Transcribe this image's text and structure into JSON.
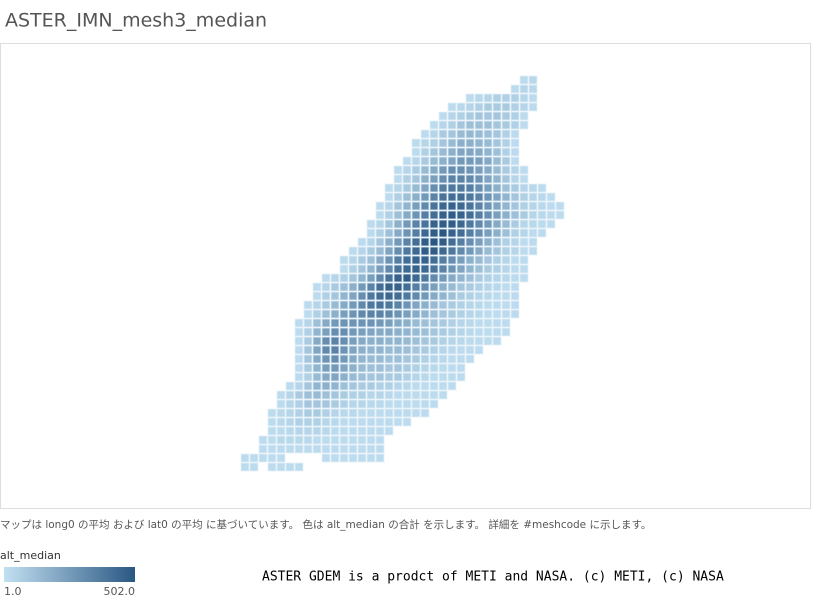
{
  "title": "ASTER_IMN_mesh3_median",
  "caption": "マップは long0 の平均 および lat0 の平均 に基づいています。 色は alt_median の合計 を示します。 詳細を #meshcode に示します。",
  "credit": "ASTER GDEM is a prodct of METI and NASA. (c) METI, (c) NASA",
  "legend": {
    "title": "alt_median",
    "min": {
      "value": 1,
      "label": "1.0"
    },
    "max": {
      "value": 502,
      "label": "502.0"
    },
    "min_color": "#c2e0f2",
    "max_color": "#2a5783"
  },
  "mesh": {
    "rows": [
      [
        null,
        null,
        null,
        null,
        null,
        null,
        null,
        null,
        null,
        null,
        null,
        null,
        null,
        null,
        null,
        null,
        null,
        null,
        null,
        null,
        null,
        null,
        null,
        null,
        null,
        null,
        null,
        null,
        null,
        null,
        null,
        20,
        30
      ],
      [
        null,
        null,
        null,
        null,
        null,
        null,
        null,
        null,
        null,
        null,
        null,
        null,
        null,
        null,
        null,
        null,
        null,
        null,
        null,
        null,
        null,
        null,
        null,
        null,
        null,
        null,
        null,
        null,
        null,
        null,
        20,
        40,
        30
      ],
      [
        null,
        null,
        null,
        null,
        null,
        null,
        null,
        null,
        null,
        null,
        null,
        null,
        null,
        null,
        null,
        null,
        null,
        null,
        null,
        null,
        null,
        null,
        null,
        null,
        null,
        20,
        30,
        40,
        60,
        60,
        60,
        40,
        20
      ],
      [
        null,
        null,
        null,
        null,
        null,
        null,
        null,
        null,
        null,
        null,
        null,
        null,
        null,
        null,
        null,
        null,
        null,
        null,
        null,
        null,
        null,
        null,
        null,
        20,
        30,
        40,
        60,
        80,
        80,
        80,
        60,
        40,
        20
      ],
      [
        null,
        null,
        null,
        null,
        null,
        null,
        null,
        null,
        null,
        null,
        null,
        null,
        null,
        null,
        null,
        null,
        null,
        null,
        null,
        null,
        null,
        null,
        20,
        40,
        60,
        80,
        100,
        100,
        100,
        80,
        60,
        20
      ],
      [
        null,
        null,
        null,
        null,
        null,
        null,
        null,
        null,
        null,
        null,
        null,
        null,
        null,
        null,
        null,
        null,
        null,
        null,
        null,
        null,
        null,
        20,
        40,
        60,
        100,
        120,
        120,
        120,
        100,
        80,
        60,
        20
      ],
      [
        null,
        null,
        null,
        null,
        null,
        null,
        null,
        null,
        null,
        null,
        null,
        null,
        null,
        null,
        null,
        null,
        null,
        null,
        null,
        null,
        20,
        40,
        80,
        100,
        140,
        150,
        140,
        120,
        100,
        60,
        20
      ],
      [
        null,
        null,
        null,
        null,
        null,
        null,
        null,
        null,
        null,
        null,
        null,
        null,
        null,
        null,
        null,
        null,
        null,
        null,
        null,
        20,
        40,
        60,
        100,
        140,
        180,
        180,
        160,
        140,
        100,
        60,
        20
      ],
      [
        null,
        null,
        null,
        null,
        null,
        null,
        null,
        null,
        null,
        null,
        null,
        null,
        null,
        null,
        null,
        null,
        null,
        null,
        null,
        20,
        60,
        100,
        140,
        180,
        220,
        220,
        200,
        160,
        120,
        60,
        20
      ],
      [
        null,
        null,
        null,
        null,
        null,
        null,
        null,
        null,
        null,
        null,
        null,
        null,
        null,
        null,
        null,
        null,
        null,
        null,
        20,
        40,
        80,
        140,
        180,
        220,
        260,
        260,
        240,
        200,
        140,
        80,
        20
      ],
      [
        null,
        null,
        null,
        null,
        null,
        null,
        null,
        null,
        null,
        null,
        null,
        null,
        null,
        null,
        null,
        null,
        null,
        20,
        40,
        80,
        140,
        200,
        260,
        300,
        300,
        280,
        240,
        200,
        140,
        80,
        40,
        20
      ],
      [
        null,
        null,
        null,
        null,
        null,
        null,
        null,
        null,
        null,
        null,
        null,
        null,
        null,
        null,
        null,
        null,
        null,
        20,
        60,
        100,
        180,
        240,
        300,
        340,
        340,
        320,
        280,
        220,
        160,
        100,
        40,
        20
      ],
      [
        null,
        null,
        null,
        null,
        null,
        null,
        null,
        null,
        null,
        null,
        null,
        null,
        null,
        null,
        null,
        null,
        20,
        40,
        80,
        140,
        220,
        300,
        360,
        380,
        380,
        360,
        300,
        240,
        180,
        120,
        80,
        40,
        30,
        20
      ],
      [
        null,
        null,
        null,
        null,
        null,
        null,
        null,
        null,
        null,
        null,
        null,
        null,
        null,
        null,
        null,
        null,
        20,
        60,
        120,
        180,
        260,
        340,
        400,
        420,
        420,
        380,
        340,
        280,
        220,
        160,
        100,
        60,
        40,
        30,
        20
      ],
      [
        null,
        null,
        null,
        null,
        null,
        null,
        null,
        null,
        null,
        null,
        null,
        null,
        null,
        null,
        null,
        20,
        40,
        100,
        160,
        240,
        320,
        400,
        440,
        460,
        440,
        400,
        340,
        280,
        220,
        160,
        100,
        60,
        40,
        30,
        20,
        20
      ],
      [
        null,
        null,
        null,
        null,
        null,
        null,
        null,
        null,
        null,
        null,
        null,
        null,
        null,
        null,
        null,
        20,
        60,
        120,
        200,
        280,
        360,
        420,
        460,
        480,
        460,
        420,
        360,
        300,
        240,
        180,
        120,
        80,
        40,
        30,
        20,
        20
      ],
      [
        null,
        null,
        null,
        null,
        null,
        null,
        null,
        null,
        null,
        null,
        null,
        null,
        null,
        null,
        20,
        40,
        100,
        180,
        260,
        340,
        400,
        460,
        480,
        480,
        440,
        380,
        320,
        260,
        200,
        140,
        80,
        40,
        30,
        20,
        20
      ],
      [
        null,
        null,
        null,
        null,
        null,
        null,
        null,
        null,
        null,
        null,
        null,
        null,
        null,
        null,
        20,
        60,
        120,
        200,
        280,
        360,
        440,
        480,
        500,
        460,
        420,
        360,
        300,
        240,
        180,
        120,
        60,
        40,
        20,
        20
      ],
      [
        null,
        null,
        null,
        null,
        null,
        null,
        null,
        null,
        null,
        null,
        null,
        null,
        null,
        20,
        40,
        100,
        180,
        260,
        340,
        420,
        480,
        502,
        480,
        420,
        360,
        300,
        240,
        180,
        120,
        60,
        40,
        20,
        20
      ],
      [
        null,
        null,
        null,
        null,
        null,
        null,
        null,
        null,
        null,
        null,
        null,
        null,
        20,
        40,
        80,
        140,
        220,
        300,
        380,
        440,
        480,
        480,
        440,
        380,
        320,
        260,
        200,
        140,
        100,
        60,
        40,
        20,
        20
      ],
      [
        null,
        null,
        null,
        null,
        null,
        null,
        null,
        null,
        null,
        null,
        null,
        20,
        40,
        80,
        120,
        200,
        280,
        360,
        420,
        460,
        460,
        420,
        360,
        300,
        240,
        180,
        140,
        100,
        60,
        40,
        20,
        20
      ],
      [
        null,
        null,
        null,
        null,
        null,
        null,
        null,
        null,
        null,
        null,
        null,
        20,
        60,
        100,
        160,
        240,
        320,
        400,
        440,
        460,
        440,
        400,
        340,
        280,
        220,
        160,
        120,
        80,
        60,
        40,
        20,
        20
      ],
      [
        null,
        null,
        null,
        null,
        null,
        null,
        null,
        null,
        null,
        20,
        40,
        60,
        100,
        160,
        240,
        320,
        400,
        460,
        480,
        440,
        380,
        320,
        260,
        200,
        160,
        120,
        80,
        60,
        40,
        30,
        20,
        20
      ],
      [
        null,
        null,
        null,
        null,
        null,
        null,
        null,
        null,
        20,
        40,
        80,
        120,
        180,
        260,
        340,
        420,
        460,
        460,
        420,
        360,
        300,
        240,
        180,
        140,
        100,
        80,
        60,
        40,
        30,
        20,
        20
      ],
      [
        null,
        null,
        null,
        null,
        null,
        null,
        null,
        null,
        20,
        60,
        100,
        160,
        220,
        300,
        380,
        420,
        440,
        420,
        380,
        320,
        260,
        200,
        160,
        120,
        80,
        60,
        40,
        30,
        20,
        20,
        20
      ],
      [
        null,
        null,
        null,
        null,
        null,
        null,
        null,
        20,
        40,
        80,
        140,
        200,
        260,
        320,
        380,
        400,
        380,
        340,
        280,
        220,
        180,
        140,
        100,
        80,
        60,
        40,
        30,
        20,
        20,
        20,
        20
      ],
      [
        null,
        null,
        null,
        null,
        null,
        null,
        null,
        20,
        60,
        120,
        180,
        240,
        280,
        320,
        340,
        340,
        320,
        280,
        240,
        200,
        160,
        120,
        100,
        80,
        60,
        40,
        30,
        20,
        20,
        20,
        20
      ],
      [
        null,
        null,
        null,
        null,
        null,
        null,
        20,
        40,
        120,
        200,
        260,
        280,
        280,
        280,
        280,
        260,
        240,
        200,
        180,
        140,
        120,
        100,
        80,
        60,
        40,
        30,
        20,
        20,
        20,
        20
      ],
      [
        null,
        null,
        null,
        null,
        null,
        null,
        20,
        60,
        160,
        240,
        300,
        300,
        260,
        240,
        220,
        200,
        200,
        180,
        160,
        140,
        120,
        100,
        80,
        60,
        40,
        30,
        20,
        20,
        20,
        20
      ],
      [
        null,
        null,
        null,
        null,
        null,
        null,
        20,
        80,
        200,
        300,
        340,
        300,
        240,
        200,
        180,
        180,
        160,
        160,
        140,
        120,
        100,
        80,
        60,
        40,
        30,
        20,
        20,
        20,
        20
      ],
      [
        null,
        null,
        null,
        null,
        null,
        null,
        20,
        100,
        220,
        320,
        340,
        280,
        220,
        180,
        160,
        160,
        140,
        140,
        120,
        100,
        80,
        60,
        40,
        30,
        20,
        20,
        20
      ],
      [
        null,
        null,
        null,
        null,
        null,
        null,
        20,
        100,
        200,
        280,
        300,
        260,
        200,
        160,
        140,
        140,
        120,
        120,
        100,
        80,
        60,
        40,
        30,
        20,
        20,
        20
      ],
      [
        null,
        null,
        null,
        null,
        null,
        null,
        20,
        80,
        160,
        240,
        260,
        220,
        180,
        140,
        120,
        120,
        100,
        100,
        80,
        60,
        40,
        30,
        20,
        20,
        20
      ],
      [
        null,
        null,
        null,
        null,
        null,
        null,
        20,
        60,
        140,
        200,
        220,
        180,
        140,
        120,
        100,
        100,
        80,
        80,
        60,
        40,
        30,
        20,
        20,
        20,
        20
      ],
      [
        null,
        null,
        null,
        null,
        null,
        20,
        40,
        100,
        160,
        180,
        160,
        120,
        100,
        80,
        80,
        60,
        60,
        40,
        30,
        20,
        20,
        20,
        20,
        20
      ],
      [
        null,
        null,
        null,
        null,
        20,
        40,
        80,
        120,
        140,
        120,
        100,
        80,
        60,
        60,
        40,
        40,
        30,
        20,
        20,
        20,
        20,
        20,
        20
      ],
      [
        null,
        null,
        null,
        null,
        20,
        40,
        60,
        100,
        100,
        100,
        80,
        60,
        40,
        40,
        30,
        30,
        20,
        20,
        20,
        20,
        20,
        20
      ],
      [
        null,
        null,
        null,
        20,
        30,
        40,
        60,
        80,
        80,
        60,
        40,
        30,
        30,
        20,
        20,
        20,
        20,
        20,
        20,
        20,
        20
      ],
      [
        null,
        null,
        null,
        20,
        30,
        40,
        60,
        60,
        60,
        40,
        30,
        20,
        20,
        20,
        20,
        20,
        20,
        20,
        20
      ],
      [
        null,
        null,
        null,
        20,
        20,
        30,
        40,
        40,
        40,
        30,
        20,
        20,
        20,
        20,
        20,
        20,
        20
      ],
      [
        null,
        null,
        20,
        20,
        30,
        30,
        30,
        30,
        20,
        20,
        20,
        20,
        20,
        20,
        20,
        20
      ],
      [
        null,
        null,
        20,
        20,
        20,
        20,
        20,
        20,
        20,
        20,
        20,
        20,
        20,
        20,
        20,
        20
      ],
      [
        20,
        20,
        20,
        20,
        20,
        null,
        null,
        null,
        null,
        20,
        20,
        20,
        20,
        20,
        20,
        20
      ],
      [
        20,
        20,
        null,
        20,
        20,
        20,
        20
      ]
    ]
  }
}
